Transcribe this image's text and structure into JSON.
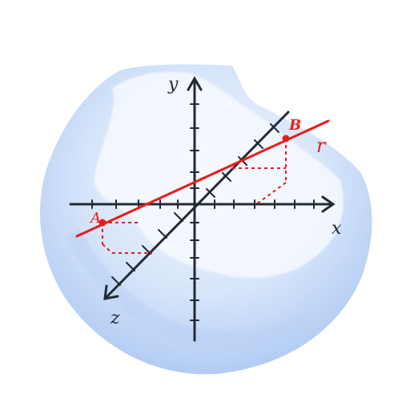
{
  "colors": {
    "axis": "#222a36",
    "line_r": "#e81c1c",
    "blob_light": "#eef4ff",
    "blob_mid": "#c9dcf8",
    "blob_dark": "#9ebfef"
  },
  "axis_labels": {
    "y": "y",
    "x": "x",
    "z": "z"
  },
  "points": {
    "a": "A",
    "b": "B"
  },
  "line_label": "r"
}
